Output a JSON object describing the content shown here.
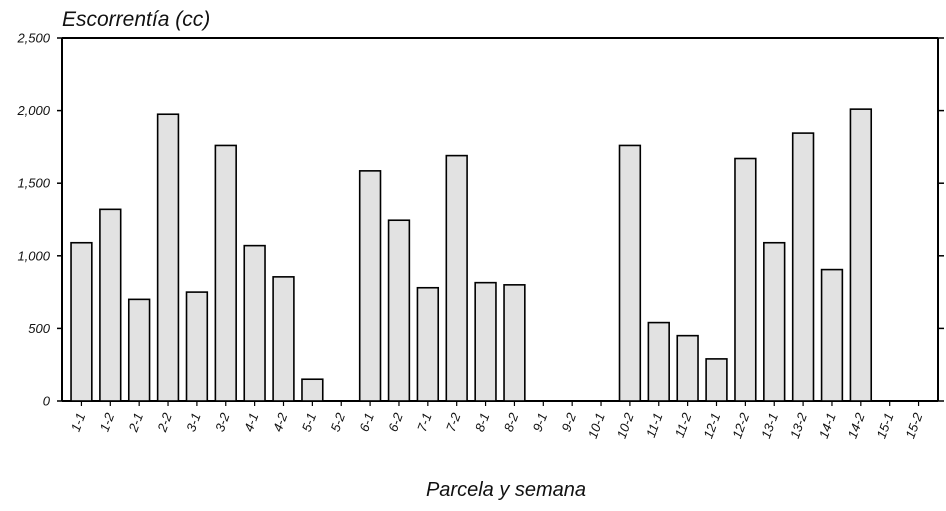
{
  "chart_data": {
    "type": "bar",
    "title": "Escorrentía (cc)",
    "xlabel": "Parcela y semana",
    "ylabel": "",
    "ylim": [
      0,
      2500
    ],
    "yticks": [
      0,
      500,
      1000,
      1500,
      2000,
      2500
    ],
    "ytick_labels": [
      "0",
      "500",
      "1,000",
      "1,500",
      "2,000",
      "2,500"
    ],
    "categories": [
      "1-1",
      "1-2",
      "2-1",
      "2-2",
      "3-1",
      "3-2",
      "4-1",
      "4-2",
      "5-1",
      "5-2",
      "6-1",
      "6-2",
      "7-1",
      "7-2",
      "8-1",
      "8-2",
      "9-1",
      "9-2",
      "10-1",
      "10-2",
      "11-1",
      "11-2",
      "12-1",
      "12-2",
      "13-1",
      "13-2",
      "14-1",
      "14-2",
      "15-1",
      "15-2"
    ],
    "values": [
      1090,
      1320,
      700,
      1975,
      750,
      1760,
      1070,
      855,
      150,
      0,
      1585,
      1245,
      780,
      1690,
      815,
      800,
      0,
      0,
      0,
      1760,
      540,
      450,
      290,
      1670,
      1090,
      1845,
      905,
      2010,
      0,
      0
    ],
    "bar_color": "#e2e2e2",
    "grid": false,
    "legend": "none"
  }
}
